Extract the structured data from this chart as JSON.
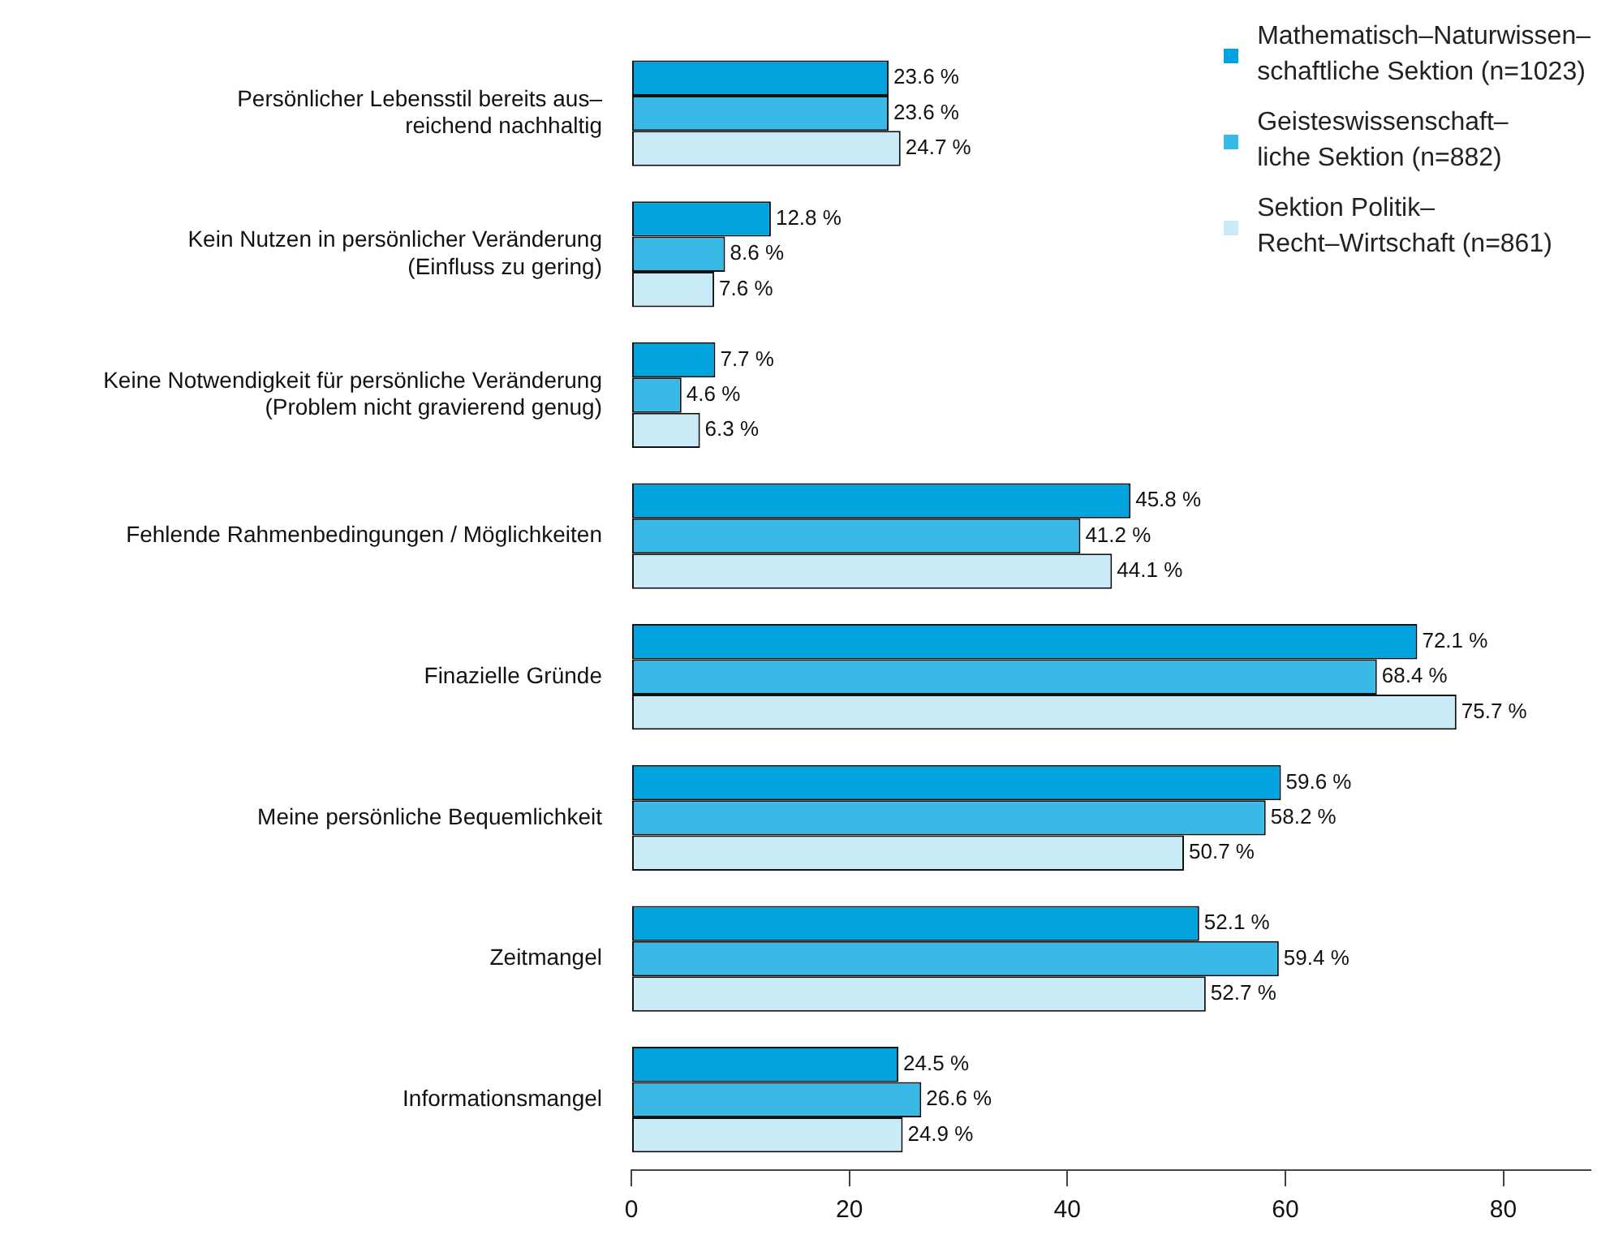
{
  "chart_data": {
    "type": "bar",
    "orientation": "horizontal",
    "categories": [
      "Persönlicher Lebensstil bereits aus–\nreichend nachhaltig",
      "Kein Nutzen in persönlicher Veränderung\n(Einfluss zu gering)",
      "Keine Notwendigkeit für persönliche Veränderung\n(Problem nicht gravierend genug)",
      "Fehlende Rahmenbedingungen / Möglichkeiten",
      "Finazielle Gründe",
      "Meine persönliche Bequemlichkeit",
      "Zeitmangel",
      "Informationsmangel"
    ],
    "series": [
      {
        "name": "Mathematisch–Naturwissen–\nschaftliche Sektion (n=1023)",
        "color": "#00a3dd",
        "values": [
          23.6,
          12.8,
          7.7,
          45.8,
          72.1,
          59.6,
          52.1,
          24.5
        ],
        "value_labels": [
          "23.6 %",
          "12.8 %",
          "7.7 %",
          "45.8 %",
          "72.1 %",
          "59.6 %",
          "52.1 %",
          "24.5 %"
        ]
      },
      {
        "name": "Geisteswissenschaft–\nliche Sektion (n=882)",
        "color": "#38b9e6",
        "values": [
          23.6,
          8.6,
          4.6,
          41.2,
          68.4,
          58.2,
          59.4,
          26.6
        ],
        "value_labels": [
          "23.6 %",
          "8.6 %",
          "4.6 %",
          "41.2 %",
          "68.4 %",
          "58.2 %",
          "59.4 %",
          "26.6 %"
        ]
      },
      {
        "name": "Sektion Politik–\nRecht–Wirtschaft (n=861)",
        "color": "#c8ebf7",
        "values": [
          24.7,
          7.6,
          6.3,
          44.1,
          75.7,
          50.7,
          52.7,
          24.9
        ],
        "value_labels": [
          "24.7 %",
          "7.6 %",
          "6.3 %",
          "44.1 %",
          "75.7 %",
          "50.7 %",
          "52.7 %",
          "24.9 %"
        ]
      }
    ],
    "xlim": [
      0,
      88
    ],
    "xticks": [
      0,
      20,
      40,
      60,
      80
    ],
    "grid": false,
    "legend": "top right"
  }
}
